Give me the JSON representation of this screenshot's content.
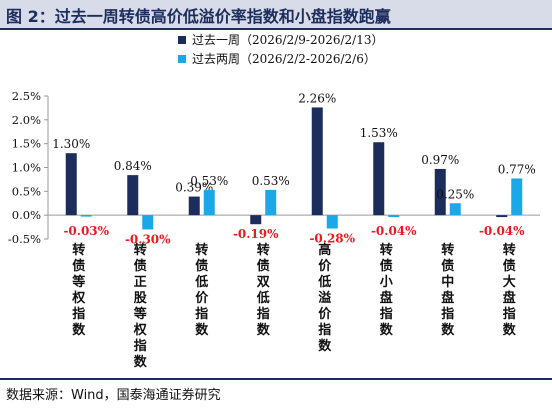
{
  "figure": {
    "title": "图 2：过去一周转债高价低溢价率指数和小盘指数跑赢",
    "source": "数据来源：Wind，国泰海通证券研究"
  },
  "colors": {
    "series1": "#1c2d5c",
    "series2": "#1aa9e6",
    "negative_label": "#e8191f",
    "title_bar": "#d7dce8",
    "rule": "#1c2d5c"
  },
  "chart_data": {
    "type": "bar",
    "categories": [
      "转债等权指数",
      "转债正股等权指数",
      "转债低价指数",
      "转债双低指数",
      "高价低溢价指数",
      "转债小盘指数",
      "转债中盘指数",
      "转债大盘指数"
    ],
    "series": [
      {
        "name": "过去一周（2026/2/9-2026/2/13）",
        "values": [
          1.3,
          0.84,
          0.39,
          -0.19,
          2.26,
          1.53,
          0.97,
          -0.04
        ],
        "labels": [
          "1.30%",
          "0.84%",
          "0.39%",
          "-0.19%",
          "2.26%",
          "1.53%",
          "0.97%",
          "-0.04%"
        ]
      },
      {
        "name": "过去两周（2026/2/2-2026/2/6）",
        "values": [
          -0.03,
          -0.3,
          0.53,
          0.53,
          -0.28,
          -0.04,
          0.25,
          0.77
        ],
        "labels": [
          "-0.03%",
          "-0.30%",
          "0.53%",
          "0.53%",
          "-0.28%",
          "-0.04%",
          "0.25%",
          "0.77%"
        ]
      }
    ],
    "ylim": [
      -0.5,
      2.5
    ],
    "yticks": [
      -0.5,
      0.0,
      0.5,
      1.0,
      1.5,
      2.0,
      2.5
    ],
    "ytick_labels": [
      "-0.5%",
      "0.0%",
      "0.5%",
      "1.0%",
      "1.5%",
      "2.0%",
      "2.5%"
    ],
    "legend_position": "top-center",
    "grid": false
  }
}
